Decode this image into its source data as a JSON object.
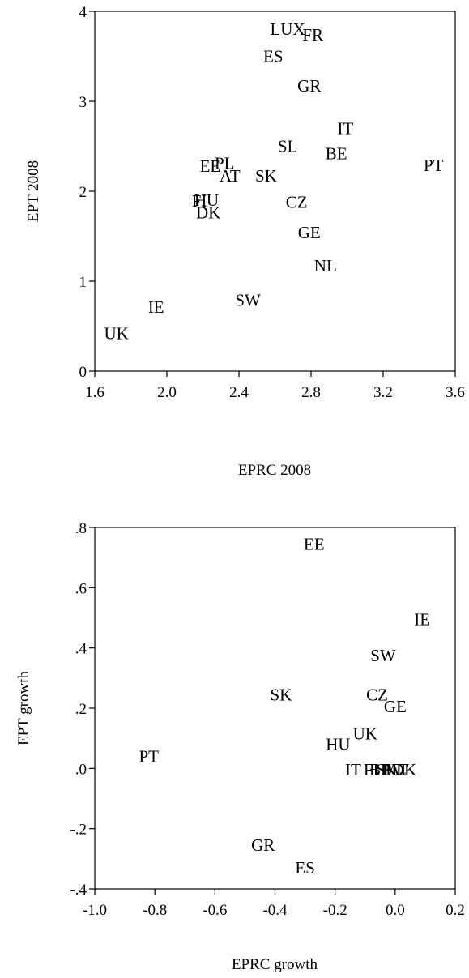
{
  "chart_data": [
    {
      "type": "scatter",
      "xlabel": "EPRC 2008",
      "ylabel": "EPT 2008",
      "xlim": [
        1.6,
        3.6
      ],
      "ylim": [
        0,
        4
      ],
      "x_ticks": [
        "1.6",
        "2.0",
        "2.4",
        "2.8",
        "3.2",
        "3.6"
      ],
      "y_ticks": [
        "0",
        "1",
        "2",
        "3",
        "4"
      ],
      "grid": false,
      "points": [
        {
          "label": "LUX",
          "x": 2.67,
          "y": 3.8
        },
        {
          "label": "FR",
          "x": 2.81,
          "y": 3.74
        },
        {
          "label": "ES",
          "x": 2.59,
          "y": 3.5
        },
        {
          "label": "GR",
          "x": 2.79,
          "y": 3.17
        },
        {
          "label": "IT",
          "x": 2.99,
          "y": 2.7
        },
        {
          "label": "SL",
          "x": 2.67,
          "y": 2.5
        },
        {
          "label": "BE",
          "x": 2.94,
          "y": 2.42
        },
        {
          "label": "PT",
          "x": 3.48,
          "y": 2.29
        },
        {
          "label": "EE",
          "x": 2.24,
          "y": 2.28
        },
        {
          "label": "PL",
          "x": 2.32,
          "y": 2.31
        },
        {
          "label": "AT",
          "x": 2.35,
          "y": 2.17
        },
        {
          "label": "SK",
          "x": 2.55,
          "y": 2.17
        },
        {
          "label": "FI",
          "x": 2.18,
          "y": 1.89
        },
        {
          "label": "HU",
          "x": 2.22,
          "y": 1.9
        },
        {
          "label": "DK",
          "x": 2.23,
          "y": 1.76
        },
        {
          "label": "CZ",
          "x": 2.72,
          "y": 1.88
        },
        {
          "label": "GE",
          "x": 2.79,
          "y": 1.54
        },
        {
          "label": "NL",
          "x": 2.88,
          "y": 1.17
        },
        {
          "label": "SW",
          "x": 2.45,
          "y": 0.79
        },
        {
          "label": "IE",
          "x": 1.94,
          "y": 0.71
        },
        {
          "label": "UK",
          "x": 1.72,
          "y": 0.42
        }
      ]
    },
    {
      "type": "scatter",
      "xlabel": "EPRC growth",
      "ylabel": "EPT growth",
      "xlim": [
        -1.0,
        0.2
      ],
      "ylim": [
        -0.4,
        0.8
      ],
      "x_ticks": [
        "-1.0",
        "-0.8",
        "-0.6",
        "-0.4",
        "-0.2",
        "0.0",
        "0.2"
      ],
      "y_ticks": [
        "-.4",
        "-.2",
        ".0",
        ".2",
        ".4",
        ".6",
        ".8"
      ],
      "grid": false,
      "points": [
        {
          "label": "EE",
          "x": -0.27,
          "y": 0.745
        },
        {
          "label": "IE",
          "x": 0.09,
          "y": 0.495
        },
        {
          "label": "SW",
          "x": -0.04,
          "y": 0.375
        },
        {
          "label": "SK",
          "x": -0.38,
          "y": 0.245
        },
        {
          "label": "CZ",
          "x": -0.06,
          "y": 0.245
        },
        {
          "label": "GE",
          "x": 0.0,
          "y": 0.205
        },
        {
          "label": "UK",
          "x": -0.1,
          "y": 0.115
        },
        {
          "label": "HU",
          "x": -0.19,
          "y": 0.08
        },
        {
          "label": "PT",
          "x": -0.82,
          "y": 0.04
        },
        {
          "label": "IT",
          "x": -0.14,
          "y": -0.005
        },
        {
          "label": "FI",
          "x": -0.08,
          "y": -0.005
        },
        {
          "label": "BE",
          "x": -0.05,
          "y": -0.005
        },
        {
          "label": "SL",
          "x": -0.03,
          "y": -0.005
        },
        {
          "label": "PL",
          "x": -0.01,
          "y": -0.005
        },
        {
          "label": "NL",
          "x": 0.0,
          "y": -0.005
        },
        {
          "label": "AT",
          "x": 0.01,
          "y": -0.005
        },
        {
          "label": "DK",
          "x": 0.03,
          "y": -0.005
        },
        {
          "label": "GR",
          "x": -0.44,
          "y": -0.255
        },
        {
          "label": "ES",
          "x": -0.3,
          "y": -0.33
        }
      ]
    }
  ]
}
